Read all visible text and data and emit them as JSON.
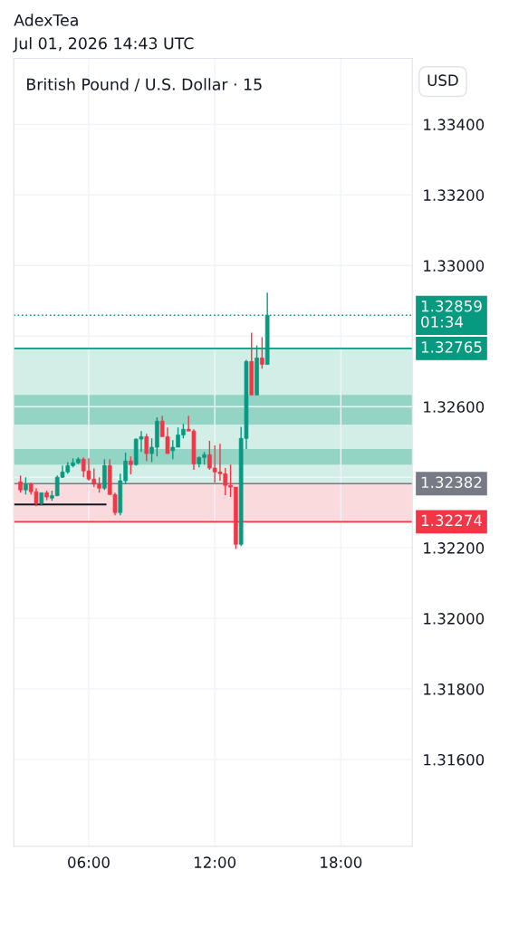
{
  "chart_data": {
    "type": "candlestick",
    "title": "British Pound / U.S. Dollar · 15",
    "annotations": [
      "AdexTea",
      "Jul 01, 2026 14:43 UTC",
      "USD"
    ],
    "x": [
      2.75,
      3.0,
      3.25,
      3.5,
      3.75,
      4.0,
      4.25,
      4.5,
      4.75,
      5.0,
      5.25,
      5.5,
      5.75,
      6.0,
      6.25,
      6.5,
      6.75,
      7.0,
      7.25,
      7.5,
      7.75,
      8.0,
      8.25,
      8.5,
      8.75,
      9.0,
      9.25,
      9.5,
      9.75,
      10.0,
      10.25,
      10.5,
      10.75,
      11.0,
      11.25,
      11.5,
      11.75,
      12.0,
      12.25,
      12.5,
      12.75,
      13.0,
      13.25,
      13.5,
      13.75,
      14.0,
      14.25,
      14.5
    ],
    "ohlc": [
      [
        1.32387,
        1.32405,
        1.32356,
        1.32364
      ],
      [
        1.32364,
        1.324,
        1.32351,
        1.3238
      ],
      [
        1.3238,
        1.32385,
        1.32351,
        1.32359
      ],
      [
        1.32359,
        1.32369,
        1.32318,
        1.32326
      ],
      [
        1.32326,
        1.32356,
        1.3232,
        1.32356
      ],
      [
        1.32356,
        1.32362,
        1.32335,
        1.32344
      ],
      [
        1.32341,
        1.32362,
        1.32333,
        1.32348
      ],
      [
        1.32348,
        1.32405,
        1.32346,
        1.324
      ],
      [
        1.324,
        1.32433,
        1.32398,
        1.32415
      ],
      [
        1.32415,
        1.32443,
        1.3241,
        1.32433
      ],
      [
        1.32433,
        1.32454,
        1.32428,
        1.32441
      ],
      [
        1.32441,
        1.32456,
        1.32438,
        1.32451
      ],
      [
        1.32451,
        1.32456,
        1.324,
        1.32418
      ],
      [
        1.32418,
        1.32454,
        1.3239,
        1.32395
      ],
      [
        1.32395,
        1.32425,
        1.32372,
        1.3238
      ],
      [
        1.3238,
        1.324,
        1.32356,
        1.32369
      ],
      [
        1.32369,
        1.32451,
        1.32364,
        1.32433
      ],
      [
        1.32433,
        1.32451,
        1.32351,
        1.32351
      ],
      [
        1.32351,
        1.32356,
        1.32292,
        1.323
      ],
      [
        1.323,
        1.3241,
        1.32292,
        1.3239
      ],
      [
        1.3239,
        1.3247,
        1.3238,
        1.32446
      ],
      [
        1.32446,
        1.32459,
        1.32408,
        1.32436
      ],
      [
        1.32436,
        1.3251,
        1.32433,
        1.32508
      ],
      [
        1.32508,
        1.32531,
        1.32472,
        1.32515
      ],
      [
        1.32515,
        1.32523,
        1.32446,
        1.32467
      ],
      [
        1.32467,
        1.3251,
        1.32443,
        1.32485
      ],
      [
        1.32485,
        1.3257,
        1.32459,
        1.32559
      ],
      [
        1.32559,
        1.32574,
        1.32515,
        1.32515
      ],
      [
        1.32515,
        1.32541,
        1.32467,
        1.32467
      ],
      [
        1.32475,
        1.32505,
        1.32451,
        1.32485
      ],
      [
        1.32485,
        1.32541,
        1.32485,
        1.3252
      ],
      [
        1.3252,
        1.32551,
        1.3251,
        1.32536
      ],
      [
        1.32536,
        1.32574,
        1.32531,
        1.32531
      ],
      [
        1.32531,
        1.32536,
        1.32421,
        1.32438
      ],
      [
        1.32438,
        1.32459,
        1.32428,
        1.32456
      ],
      [
        1.32456,
        1.32472,
        1.32436,
        1.32464
      ],
      [
        1.32464,
        1.32503,
        1.32421,
        1.32426
      ],
      [
        1.32426,
        1.3249,
        1.32385,
        1.32415
      ],
      [
        1.32415,
        1.32495,
        1.3239,
        1.3241
      ],
      [
        1.3241,
        1.32426,
        1.32349,
        1.32377
      ],
      [
        1.32377,
        1.32436,
        1.32344,
        1.32372
      ],
      [
        1.32372,
        1.32372,
        1.32197,
        1.3221
      ],
      [
        1.3221,
        1.32543,
        1.32205,
        1.3251
      ],
      [
        1.3251,
        1.32733,
        1.3248,
        1.32728
      ],
      [
        1.32728,
        1.3281,
        1.32633,
        1.32633
      ],
      [
        1.32633,
        1.32774,
        1.32633,
        1.32738
      ],
      [
        1.32738,
        1.32797,
        1.32708,
        1.3272
      ],
      [
        1.3272,
        1.32923,
        1.3272,
        1.32859
      ]
    ],
    "colors": [
      "#f23645",
      "#089981",
      "#f23645",
      "#f23645",
      "#089981",
      "#f23645",
      "#089981",
      "#089981",
      "#089981",
      "#089981",
      "#089981",
      "#089981",
      "#f23645",
      "#f23645",
      "#f23645",
      "#f23645",
      "#089981",
      "#f23645",
      "#f23645",
      "#089981",
      "#089981",
      "#f23645",
      "#089981",
      "#089981",
      "#f23645",
      "#089981",
      "#089981",
      "#f23645",
      "#f23645",
      "#089981",
      "#089981",
      "#089981",
      "#f23645",
      "#f23645",
      "#089981",
      "#089981",
      "#f23645",
      "#f23645",
      "#f23645",
      "#f23645",
      "#f23645",
      "#f23645",
      "#089981",
      "#089981",
      "#f23645",
      "#089981",
      "#f23645",
      "#089981"
    ],
    "series": [
      {
        "type": "line",
        "color": "#131722",
        "x": [
          2.43,
          6.8
        ],
        "values": [
          1.32323,
          1.32323
        ]
      }
    ],
    "bands": [
      {
        "axis": "y",
        "from": 1.32382,
        "to": 1.32765,
        "color": "#d3ede7"
      },
      {
        "axis": "y",
        "from": 1.32274,
        "to": 1.32382,
        "color": "#fbdadd"
      },
      {
        "axis": "y",
        "from": 1.32549,
        "to": 1.32633,
        "color": "#93d4c4"
      },
      {
        "axis": "y",
        "from": 1.32436,
        "to": 1.3248,
        "color": "#93d4c4"
      }
    ],
    "ref_lines": [
      {
        "axis": "y",
        "value": 1.32859,
        "label": "1.32859\n01:34",
        "color": "#089981",
        "line_style": "dotted"
      },
      {
        "axis": "y",
        "value": 1.32765,
        "label": "1.32765",
        "color": "#089981",
        "line_style": "solid"
      },
      {
        "axis": "y",
        "value": 1.32382,
        "label": "1.32382",
        "color": "#787b86",
        "line_style": "solid"
      },
      {
        "axis": "y",
        "value": 1.32274,
        "label": "1.32274",
        "color": "#f23645",
        "line_style": "solid"
      }
    ],
    "xlim": [
      2.43,
      21.4
    ],
    "ylim": [
      1.31354,
      1.33587
    ],
    "xticks": [
      {
        "value": 6,
        "label": "06:00"
      },
      {
        "value": 12,
        "label": "12:00"
      },
      {
        "value": 18,
        "label": "18:00"
      }
    ],
    "yticks": [
      {
        "value": 1.316,
        "label": "1.31600"
      },
      {
        "value": 1.318,
        "label": "1.31800"
      },
      {
        "value": 1.32,
        "label": "1.32000"
      },
      {
        "value": 1.322,
        "label": "1.32200"
      },
      {
        "value": 1.324,
        "label": null
      },
      {
        "value": 1.326,
        "label": "1.32600"
      },
      {
        "value": 1.328,
        "label": null
      },
      {
        "value": 1.33,
        "label": "1.33000"
      },
      {
        "value": 1.332,
        "label": "1.33200"
      },
      {
        "value": 1.334,
        "label": "1.33400"
      }
    ],
    "grid": true
  }
}
